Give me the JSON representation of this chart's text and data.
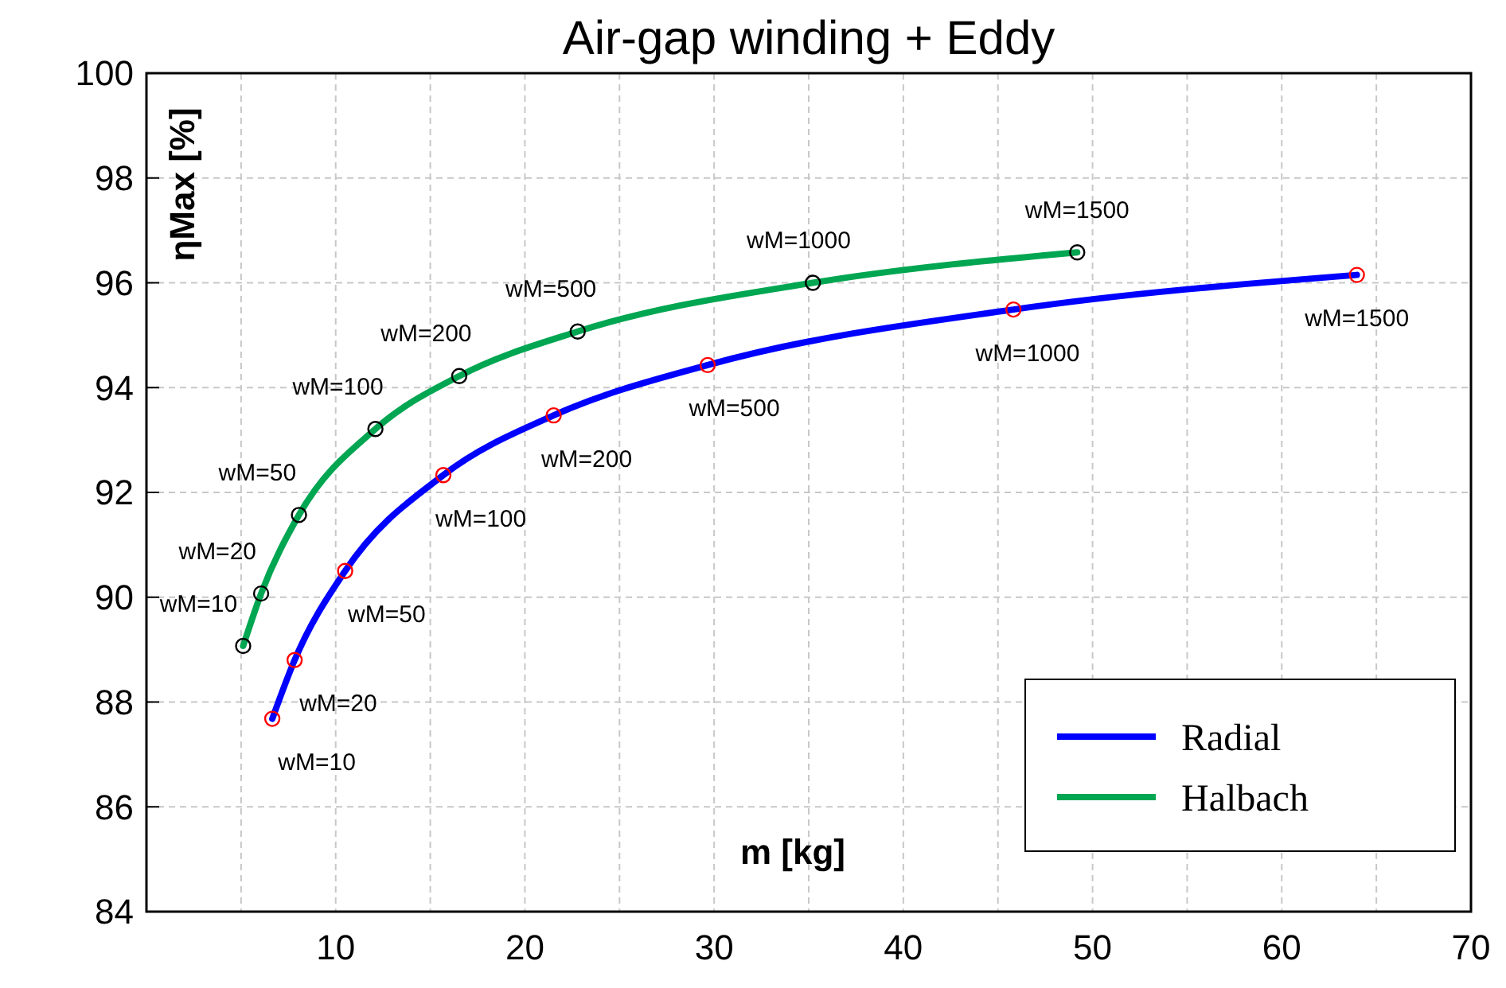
{
  "chart_data": {
    "type": "line",
    "title": "Air-gap winding + Eddy",
    "xlabel": "m [kg]",
    "ylabel": "ηMax [%]",
    "xlim": [
      0,
      70
    ],
    "ylim": [
      84,
      100
    ],
    "xticks": [
      {
        "value": 0,
        "label": null
      },
      {
        "value": 5,
        "label": null
      },
      10,
      {
        "value": 15,
        "label": null
      },
      20,
      {
        "value": 25,
        "label": null
      },
      30,
      {
        "value": 35,
        "label": null
      },
      40,
      {
        "value": 45,
        "label": null
      },
      50,
      {
        "value": 55,
        "label": null
      },
      60,
      {
        "value": 65,
        "label": null
      },
      70
    ],
    "yticks": [
      84,
      86,
      88,
      90,
      92,
      94,
      96,
      98,
      100
    ],
    "grid": true,
    "legend": "bottom right",
    "marker": "circle",
    "line_style": "solid",
    "series": [
      {
        "name": "Radial",
        "color": "#0000ff",
        "x": [
          6.65,
          7.83,
          10.5,
          15.69,
          21.52,
          29.66,
          45.82,
          63.97
        ],
        "values": [
          87.68,
          88.8,
          90.5,
          92.33,
          93.47,
          94.43,
          95.49,
          96.15
        ]
      },
      {
        "name": "Halbach",
        "color": "#00a651",
        "x": [
          5.11,
          6.06,
          8.06,
          12.1,
          16.53,
          22.79,
          35.22,
          49.19
        ],
        "values": [
          89.07,
          90.07,
          91.57,
          93.21,
          94.22,
          95.07,
          96.0,
          96.58
        ]
      }
    ],
    "annotations": [
      {
        "text": "wM=10",
        "x": 6.65,
        "y": 87.68
      },
      {
        "text": "wM=20",
        "x": 7.83,
        "y": 88.8
      },
      {
        "text": "wM=50",
        "x": 10.5,
        "y": 90.5
      },
      {
        "text": "wM=100",
        "x": 15.69,
        "y": 92.33
      },
      {
        "text": "wM=200",
        "x": 21.52,
        "y": 93.47
      },
      {
        "text": "wM=500",
        "x": 29.66,
        "y": 94.43
      },
      {
        "text": "wM=1000",
        "x": 45.82,
        "y": 95.49
      },
      {
        "text": "wM=1500",
        "x": 63.97,
        "y": 96.15
      },
      {
        "text": "wM=10",
        "x": 5.11,
        "y": 89.07
      },
      {
        "text": "wM=20",
        "x": 6.06,
        "y": 90.07
      },
      {
        "text": "wM=50",
        "x": 8.06,
        "y": 91.57
      },
      {
        "text": "wM=100",
        "x": 12.1,
        "y": 93.21
      },
      {
        "text": "wM=200",
        "x": 16.53,
        "y": 94.22
      },
      {
        "text": "wM=500",
        "x": 22.79,
        "y": 95.07
      },
      {
        "text": "wM=1000",
        "x": 35.22,
        "y": 96.0
      },
      {
        "text": "wM=1500",
        "x": 49.19,
        "y": 96.58
      }
    ]
  }
}
